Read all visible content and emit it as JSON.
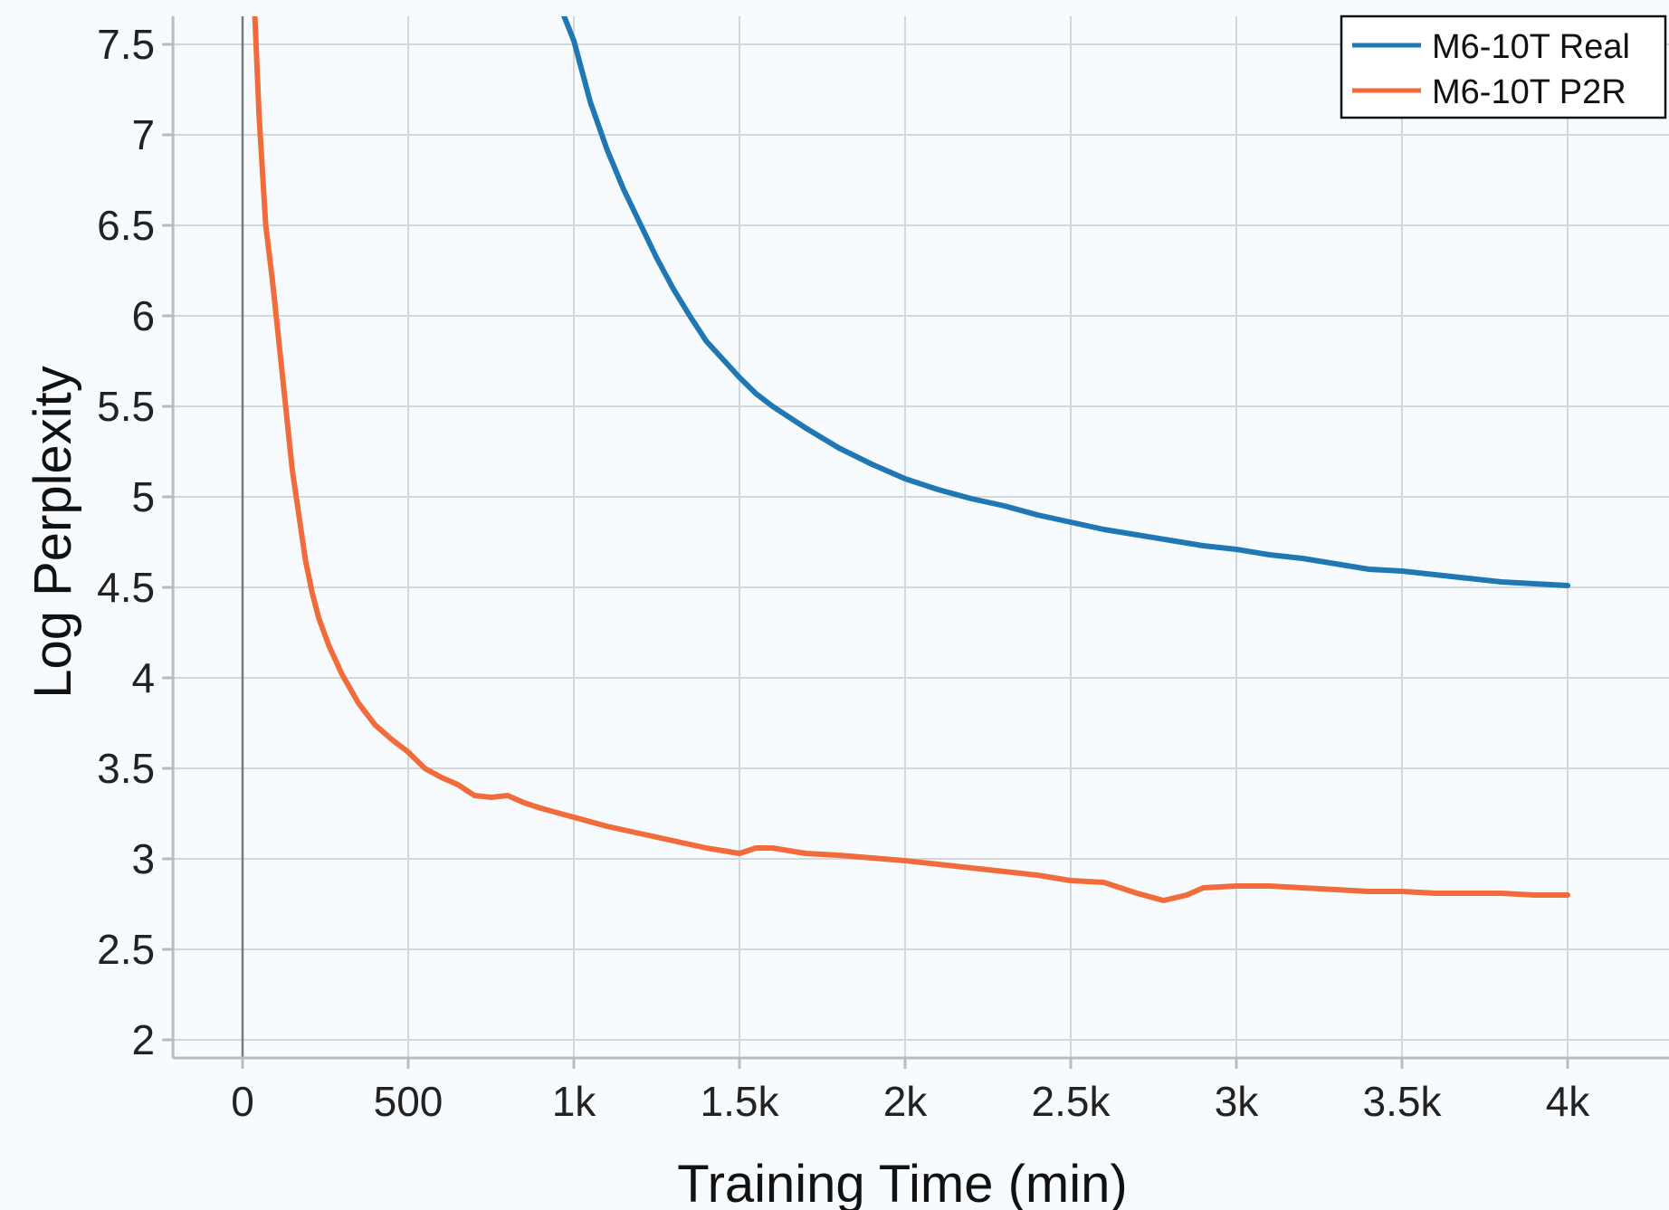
{
  "chart_data": {
    "type": "line",
    "title": "",
    "xlabel": "Training Time (min)",
    "ylabel": "Log Perplexity",
    "xlim": [
      -210,
      4150
    ],
    "ylim": [
      1.9,
      7.6
    ],
    "x_ticks": [
      {
        "value": 0,
        "label": "0"
      },
      {
        "value": 500,
        "label": "500"
      },
      {
        "value": 1000,
        "label": "1k"
      },
      {
        "value": 1500,
        "label": "1.5k"
      },
      {
        "value": 2000,
        "label": "2k"
      },
      {
        "value": 2500,
        "label": "2.5k"
      },
      {
        "value": 3000,
        "label": "3k"
      },
      {
        "value": 3500,
        "label": "3.5k"
      },
      {
        "value": 4000,
        "label": "4k"
      }
    ],
    "y_ticks": [
      {
        "value": 2,
        "label": "2"
      },
      {
        "value": 2.5,
        "label": "2.5"
      },
      {
        "value": 3,
        "label": "3"
      },
      {
        "value": 3.5,
        "label": "3.5"
      },
      {
        "value": 4,
        "label": "4"
      },
      {
        "value": 4.5,
        "label": "4.5"
      },
      {
        "value": 5,
        "label": "5"
      },
      {
        "value": 5.5,
        "label": "5.5"
      },
      {
        "value": 6,
        "label": "6"
      },
      {
        "value": 6.5,
        "label": "6.5"
      },
      {
        "value": 7,
        "label": "7"
      },
      {
        "value": 7.5,
        "label": "7.5"
      }
    ],
    "grid": true,
    "legend_position": "top-right",
    "series": [
      {
        "name": "M6-10T Real",
        "color": "#1f77b4",
        "points": [
          [
            950,
            7.75
          ],
          [
            1000,
            7.52
          ],
          [
            1050,
            7.18
          ],
          [
            1100,
            6.92
          ],
          [
            1150,
            6.7
          ],
          [
            1200,
            6.51
          ],
          [
            1250,
            6.32
          ],
          [
            1300,
            6.15
          ],
          [
            1350,
            6.0
          ],
          [
            1400,
            5.86
          ],
          [
            1450,
            5.76
          ],
          [
            1500,
            5.66
          ],
          [
            1550,
            5.57
          ],
          [
            1600,
            5.5
          ],
          [
            1700,
            5.38
          ],
          [
            1800,
            5.27
          ],
          [
            1900,
            5.18
          ],
          [
            2000,
            5.1
          ],
          [
            2100,
            5.04
          ],
          [
            2200,
            4.99
          ],
          [
            2300,
            4.95
          ],
          [
            2400,
            4.9
          ],
          [
            2500,
            4.86
          ],
          [
            2600,
            4.82
          ],
          [
            2700,
            4.79
          ],
          [
            2800,
            4.76
          ],
          [
            2900,
            4.73
          ],
          [
            3000,
            4.71
          ],
          [
            3100,
            4.68
          ],
          [
            3200,
            4.66
          ],
          [
            3300,
            4.63
          ],
          [
            3400,
            4.6
          ],
          [
            3500,
            4.59
          ],
          [
            3600,
            4.57
          ],
          [
            3700,
            4.55
          ],
          [
            3800,
            4.53
          ],
          [
            3900,
            4.52
          ],
          [
            4000,
            4.51
          ]
        ]
      },
      {
        "name": "M6-10T P2R",
        "color": "#f26b3a",
        "points": [
          [
            35,
            7.75
          ],
          [
            50,
            7.1
          ],
          [
            70,
            6.5
          ],
          [
            90,
            6.2
          ],
          [
            110,
            5.85
          ],
          [
            130,
            5.5
          ],
          [
            150,
            5.15
          ],
          [
            170,
            4.9
          ],
          [
            190,
            4.65
          ],
          [
            210,
            4.47
          ],
          [
            230,
            4.33
          ],
          [
            260,
            4.18
          ],
          [
            300,
            4.02
          ],
          [
            350,
            3.86
          ],
          [
            400,
            3.74
          ],
          [
            450,
            3.66
          ],
          [
            500,
            3.59
          ],
          [
            550,
            3.5
          ],
          [
            600,
            3.45
          ],
          [
            650,
            3.41
          ],
          [
            700,
            3.35
          ],
          [
            750,
            3.34
          ],
          [
            800,
            3.35
          ],
          [
            850,
            3.31
          ],
          [
            900,
            3.28
          ],
          [
            1000,
            3.23
          ],
          [
            1100,
            3.18
          ],
          [
            1200,
            3.14
          ],
          [
            1300,
            3.1
          ],
          [
            1400,
            3.06
          ],
          [
            1500,
            3.03
          ],
          [
            1550,
            3.06
          ],
          [
            1600,
            3.06
          ],
          [
            1700,
            3.03
          ],
          [
            1800,
            3.02
          ],
          [
            2000,
            2.99
          ],
          [
            2100,
            2.97
          ],
          [
            2200,
            2.95
          ],
          [
            2300,
            2.93
          ],
          [
            2400,
            2.91
          ],
          [
            2500,
            2.88
          ],
          [
            2600,
            2.87
          ],
          [
            2700,
            2.81
          ],
          [
            2780,
            2.77
          ],
          [
            2850,
            2.8
          ],
          [
            2900,
            2.84
          ],
          [
            3000,
            2.85
          ],
          [
            3100,
            2.85
          ],
          [
            3200,
            2.84
          ],
          [
            3300,
            2.83
          ],
          [
            3400,
            2.82
          ],
          [
            3500,
            2.82
          ],
          [
            3600,
            2.81
          ],
          [
            3700,
            2.81
          ],
          [
            3800,
            2.81
          ],
          [
            3900,
            2.8
          ],
          [
            4000,
            2.8
          ]
        ]
      }
    ]
  }
}
